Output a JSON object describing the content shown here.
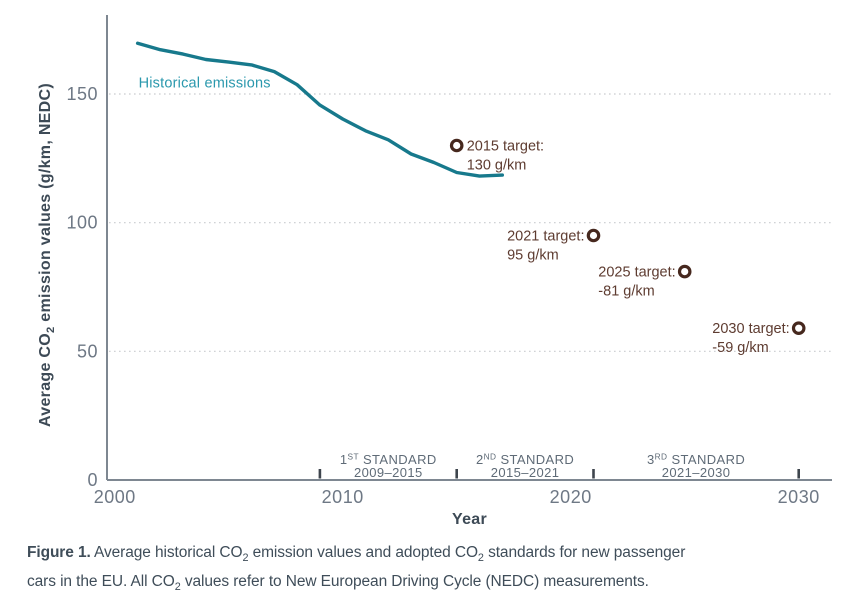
{
  "figure": {
    "caption_lines": [
      [
        {
          "t": "Figure 1.",
          "b": true
        },
        {
          "t": " Average historical CO"
        },
        {
          "t": "2",
          "sub": true
        },
        {
          "t": " emission values and adopted CO"
        },
        {
          "t": "2",
          "sub": true
        },
        {
          "t": " standards for new passenger"
        }
      ],
      [
        {
          "t": "cars in the EU. All CO"
        },
        {
          "t": "2",
          "sub": true
        },
        {
          "t": " values refer to New European Driving Cycle (NEDC) measurements."
        }
      ]
    ]
  },
  "chart_data": {
    "type": "line",
    "x_axis_label": "Year",
    "y_axis_label_segments": [
      {
        "t": "Average CO"
      },
      {
        "t": "2",
        "sub": true
      },
      {
        "t": " emission values (g/km, NEDC)"
      }
    ],
    "xlim": [
      1999.66,
      2031.46
    ],
    "ylim": [
      0,
      180.7
    ],
    "xticks": [
      2000,
      2010,
      2020,
      2030
    ],
    "yticks": [
      0,
      50,
      100,
      150
    ],
    "gridlines": [
      50,
      100,
      150
    ],
    "grid_style": "dotted",
    "legend_position": "inline-label",
    "series": [
      {
        "name": "Historical emissions",
        "label": "Historical emissions",
        "color": "#17798c",
        "label_color": "#2a98ad",
        "x": [
          2001,
          2002,
          2003,
          2004,
          2005,
          2006,
          2007,
          2008,
          2009,
          2010,
          2011,
          2012,
          2013,
          2014,
          2015,
          2016,
          2017
        ],
        "y": [
          169.7,
          167.2,
          165.5,
          163.4,
          162.4,
          161.3,
          158.7,
          153.6,
          145.7,
          140.3,
          135.7,
          132.2,
          126.7,
          123.4,
          119.5,
          118.1,
          118.5
        ]
      }
    ],
    "targets": [
      {
        "year": 2015,
        "value": 130,
        "label": "2015 target:",
        "value_label": "130 g/km",
        "text_side": "right"
      },
      {
        "year": 2021,
        "value": 95,
        "label": "2021 target:",
        "value_label": "95 g/km",
        "text_side": "left"
      },
      {
        "year": 2025,
        "value": 81,
        "label": "2025 target:",
        "value_label": "-81 g/km",
        "text_side": "left"
      },
      {
        "year": 2030,
        "value": 59,
        "label": "2030 target:",
        "value_label": "-59 g/km",
        "text_side": "left"
      }
    ],
    "standards": [
      {
        "title_segments": [
          {
            "t": "1"
          },
          {
            "t": "ST",
            "sup": true
          },
          {
            "t": " STANDARD"
          }
        ],
        "range": "2009–2015",
        "start": 2009,
        "end": 2015
      },
      {
        "title_segments": [
          {
            "t": "2"
          },
          {
            "t": "ND",
            "sup": true
          },
          {
            "t": " STANDARD"
          }
        ],
        "range": "2015–2021",
        "start": 2015,
        "end": 2021
      },
      {
        "title_segments": [
          {
            "t": "3"
          },
          {
            "t": "RD",
            "sup": true
          },
          {
            "t": " STANDARD"
          }
        ],
        "range": "2021–2030",
        "start": 2021,
        "end": 2030
      }
    ],
    "standard_boundaries": [
      2009,
      2015,
      2021,
      2030
    ],
    "colors": {
      "series_line": "#17798c",
      "series_label": "#2a98ad",
      "target_text": "#5e3c31",
      "target_ring": "#46281e",
      "axis": "#7e8791",
      "tick_label": "#6e7885",
      "standard_label": "#5f6b77",
      "boundary_tick": "#3e454d",
      "grid": "#c9cccf",
      "axis_title": "#3d4a56",
      "caption": "#3f4d59"
    }
  }
}
